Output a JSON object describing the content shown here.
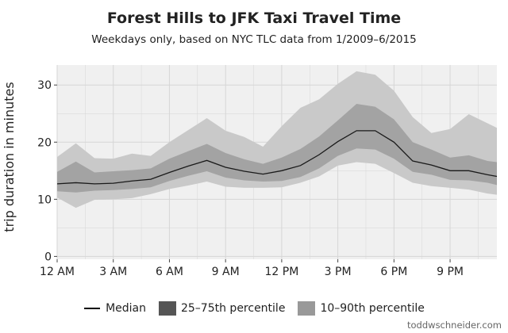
{
  "title": "Forest Hills to JFK Taxi Travel Time",
  "subtitle": "Weekdays only, based on NYC TLC data from 1/2009–6/2015",
  "credit": "toddwschneider.com",
  "colors": {
    "band_10_90": "#c9c9c9",
    "band_25_75": "#a3a3a3",
    "median": "#1a1a1a",
    "panel": "#f0f0f0",
    "grid": "#d6d6d6"
  },
  "chart_data": {
    "type": "area",
    "title": "Forest Hills to JFK Taxi Travel Time",
    "subtitle": "Weekdays only, based on NYC TLC data from 1/2009–6/2015",
    "xlabel": "",
    "ylabel": "trip duration in minutes",
    "xlim": [
      0,
      23.5
    ],
    "ylim": [
      -0.5,
      33.5
    ],
    "x_ticks": [
      0,
      3,
      6,
      9,
      12,
      15,
      18,
      21
    ],
    "x_tick_labels": [
      "12 AM",
      "3 AM",
      "6 AM",
      "9 AM",
      "12 PM",
      "3 PM",
      "6 PM",
      "9 PM"
    ],
    "y_ticks": [
      0,
      10,
      20,
      30
    ],
    "y_tick_labels": [
      "0",
      "10",
      "20",
      "30"
    ],
    "grid": true,
    "legend_position": "bottom",
    "legend": [
      "Median",
      "25–75th percentile",
      "10–90th percentile"
    ],
    "x": [
      0,
      1,
      2,
      3,
      4,
      5,
      6,
      7,
      8,
      9,
      10,
      11,
      12,
      13,
      14,
      15,
      16,
      17,
      18,
      19,
      20,
      21,
      22,
      23,
      23.5
    ],
    "series": [
      {
        "name": "Median",
        "role": "median",
        "values": [
          12.7,
          12.9,
          12.7,
          12.8,
          13.2,
          13.5,
          14.7,
          15.8,
          16.8,
          15.6,
          14.9,
          14.4,
          15.0,
          15.9,
          17.8,
          20.1,
          22.0,
          22.0,
          20.0,
          16.7,
          16.0,
          15.0,
          15.0,
          14.3,
          14.0
        ]
      },
      {
        "name": "25–75th percentile",
        "role": "band_25_75",
        "low": [
          11.4,
          11.2,
          11.5,
          11.6,
          11.8,
          12.1,
          13.2,
          14.1,
          14.9,
          13.8,
          13.3,
          13.1,
          13.2,
          13.9,
          15.4,
          17.6,
          18.9,
          18.7,
          17.1,
          14.8,
          14.3,
          13.4,
          13.3,
          12.9,
          12.5
        ],
        "high": [
          14.8,
          16.6,
          14.7,
          14.9,
          15.1,
          15.4,
          17.1,
          18.4,
          19.7,
          18.1,
          17.0,
          16.2,
          17.3,
          18.8,
          21.0,
          23.8,
          26.7,
          26.2,
          24.0,
          20.0,
          18.7,
          17.3,
          17.7,
          16.7,
          16.5
        ]
      },
      {
        "name": "10–90th percentile",
        "role": "band_10_90",
        "low": [
          10.3,
          8.5,
          9.9,
          10.0,
          10.2,
          10.9,
          11.8,
          12.4,
          13.1,
          12.2,
          12.0,
          12.0,
          12.1,
          12.9,
          14.0,
          15.9,
          16.5,
          16.2,
          14.6,
          12.9,
          12.3,
          12.0,
          11.7,
          11.0,
          10.8
        ]
      },
      {
        "name": "10–90th percentile upper",
        "role": "band_10_90_high",
        "values": [
          17.4,
          19.8,
          17.2,
          17.1,
          18.0,
          17.6,
          20.0,
          22.1,
          24.2,
          22.0,
          20.9,
          19.2,
          22.8,
          26.0,
          27.5,
          30.2,
          32.4,
          31.8,
          29.0,
          24.4,
          21.6,
          22.3,
          24.9,
          23.3,
          22.5
        ]
      }
    ]
  }
}
